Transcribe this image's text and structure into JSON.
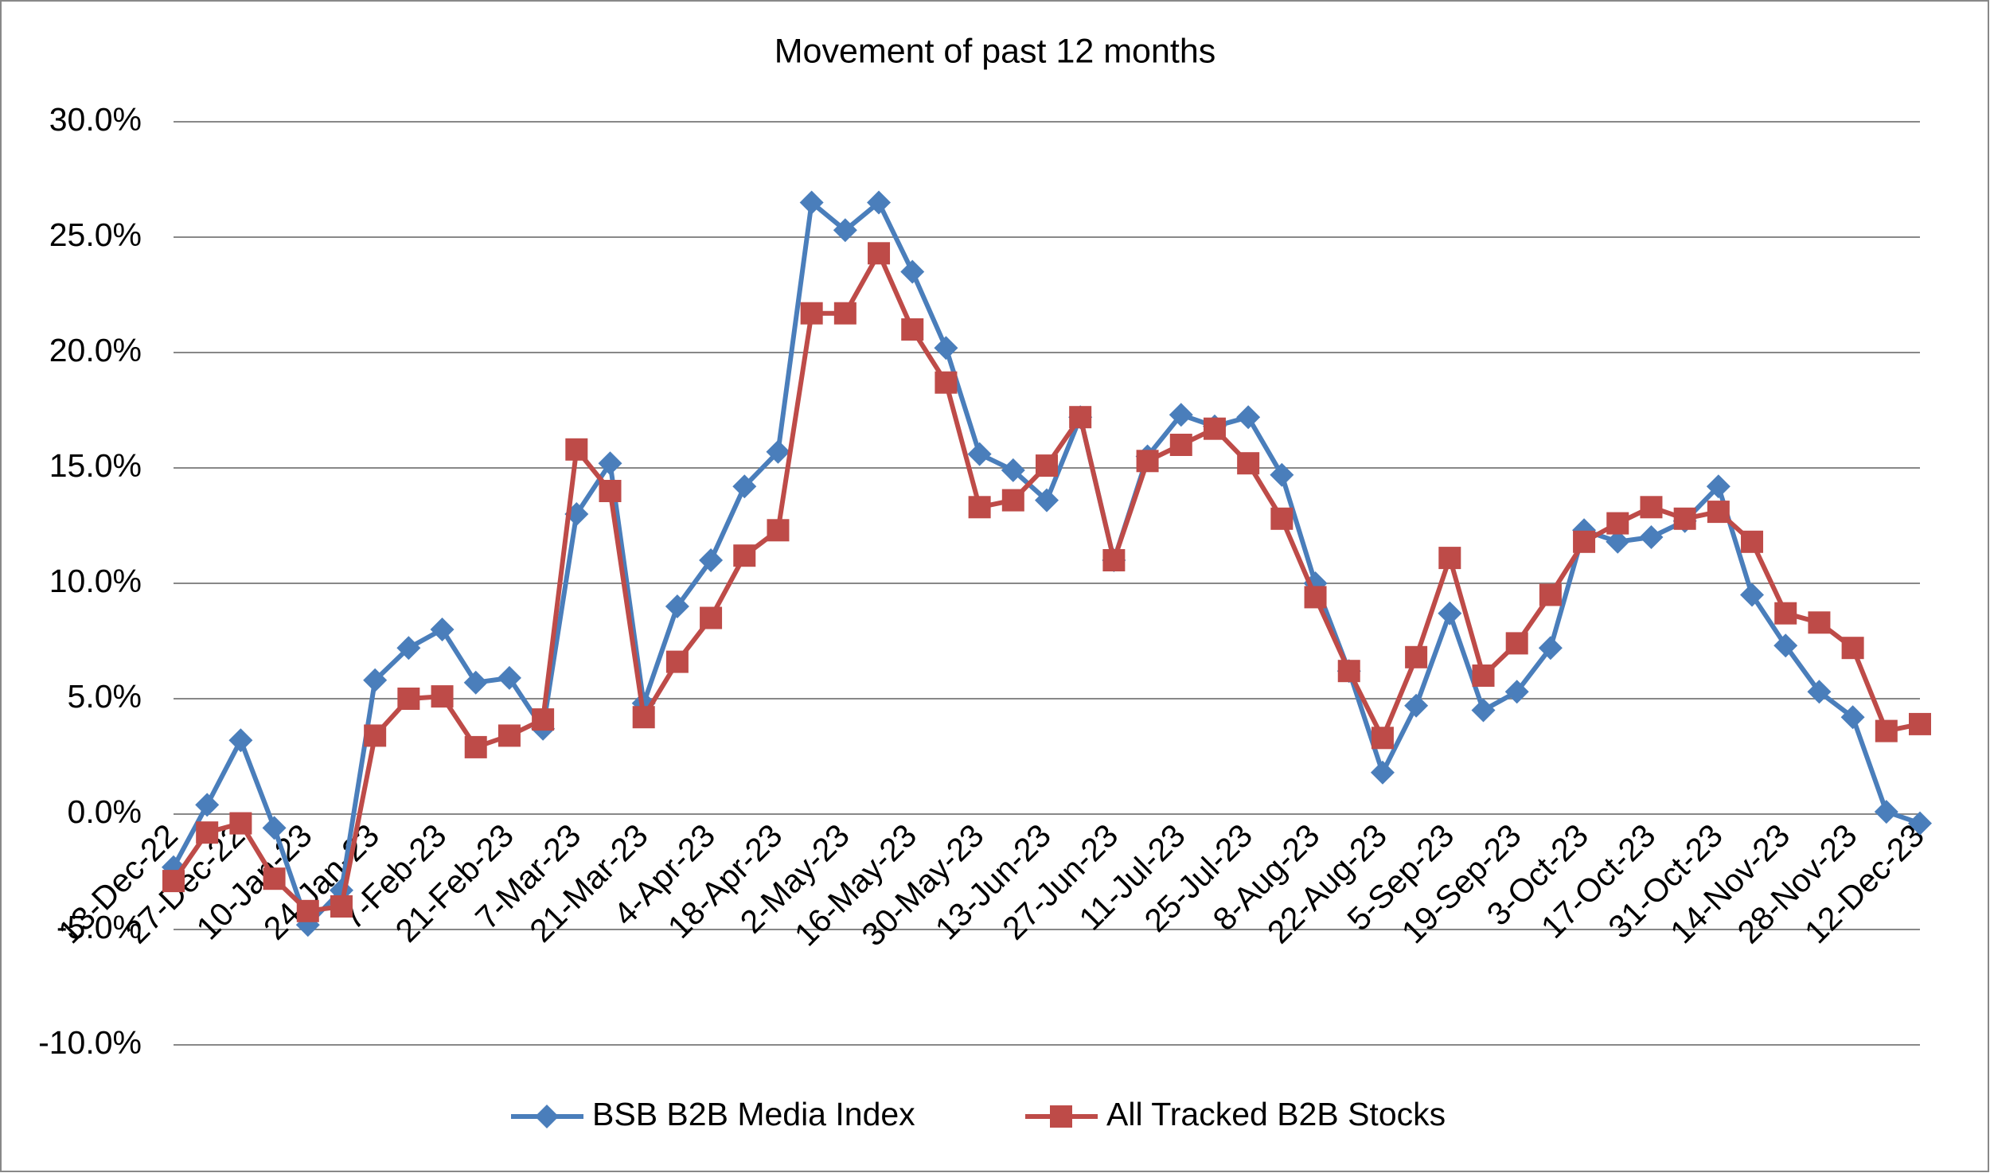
{
  "chart_data": {
    "type": "line",
    "title": "Movement of past 12 months",
    "categories": [
      "13-Dec-22",
      null,
      "27-Dec-22",
      null,
      "10-Jan-23",
      null,
      "24-Jan-23",
      null,
      "7-Feb-23",
      null,
      "21-Feb-23",
      null,
      "7-Mar-23",
      null,
      "21-Mar-23",
      null,
      "4-Apr-23",
      null,
      "18-Apr-23",
      null,
      "2-May-23",
      null,
      "16-May-23",
      null,
      "30-May-23",
      null,
      "13-Jun-23",
      null,
      "27-Jun-23",
      null,
      "11-Jul-23",
      null,
      "25-Jul-23",
      null,
      "8-Aug-23",
      null,
      "22-Aug-23",
      null,
      "5-Sep-23",
      null,
      "19-Sep-23",
      null,
      "3-Oct-23",
      null,
      "17-Oct-23",
      null,
      "31-Oct-23",
      null,
      "14-Nov-23",
      null,
      "28-Nov-23",
      null,
      "12-Dec-23"
    ],
    "series": [
      {
        "name": "BSB B2B Media Index",
        "color": "#4a7ebb",
        "marker": "diamond",
        "values": [
          -2.3,
          0.4,
          3.2,
          -0.6,
          -4.8,
          -3.3,
          5.8,
          7.2,
          8.0,
          5.7,
          5.9,
          3.7,
          13.0,
          15.2,
          4.8,
          9.0,
          11.0,
          14.2,
          15.7,
          26.5,
          25.3,
          26.5,
          23.5,
          20.2,
          15.6,
          14.9,
          13.6,
          17.2,
          11.0,
          15.5,
          17.3,
          16.8,
          17.2,
          14.7,
          10.0,
          6.2,
          1.8,
          4.7,
          8.7,
          4.5,
          5.3,
          7.2,
          12.3,
          11.8,
          12.0,
          12.7,
          14.2,
          9.5,
          7.3,
          5.3,
          4.2,
          0.1,
          -0.4
        ]
      },
      {
        "name": "All Tracked B2B Stocks",
        "color": "#be4b48",
        "marker": "square",
        "values": [
          -2.9,
          -0.8,
          -0.4,
          -2.8,
          -4.2,
          -4.0,
          3.4,
          5.0,
          5.1,
          2.9,
          3.4,
          4.1,
          15.8,
          14.0,
          4.2,
          6.6,
          8.5,
          11.2,
          12.3,
          21.7,
          21.7,
          24.3,
          21.0,
          18.7,
          13.3,
          13.6,
          15.1,
          17.2,
          11.0,
          15.3,
          16.0,
          16.7,
          15.2,
          12.8,
          9.4,
          6.2,
          3.3,
          6.8,
          11.1,
          6.0,
          7.4,
          9.5,
          11.8,
          12.6,
          13.3,
          12.8,
          13.1,
          11.8,
          8.7,
          8.3,
          7.2,
          3.6,
          3.9
        ]
      }
    ],
    "ylim": [
      -10,
      30
    ],
    "yticks": [
      {
        "value": -10,
        "label": "-10.0%"
      },
      {
        "value": -5,
        "label": "-5.0%"
      },
      {
        "value": 0,
        "label": "0.0%"
      },
      {
        "value": 5,
        "label": "5.0%"
      },
      {
        "value": 10,
        "label": "10.0%"
      },
      {
        "value": 15,
        "label": "15.0%"
      },
      {
        "value": 20,
        "label": "20.0%"
      },
      {
        "value": 25,
        "label": "25.0%"
      },
      {
        "value": 30,
        "label": "30.0%"
      }
    ],
    "grid": true,
    "legend": "bottom"
  }
}
